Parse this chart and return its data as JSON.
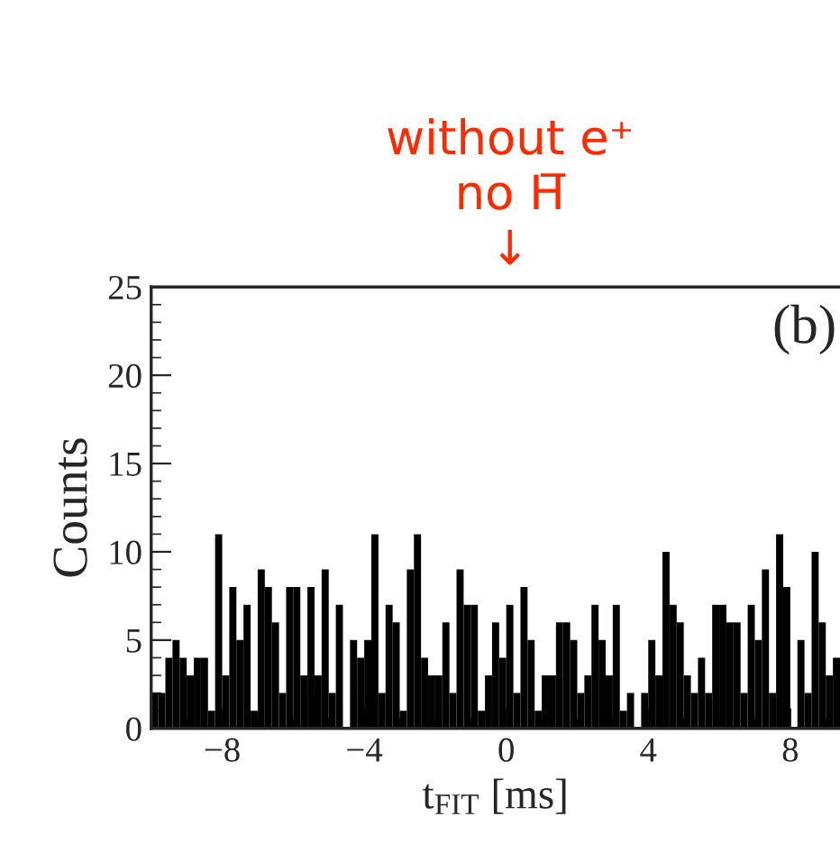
{
  "chart_data": {
    "type": "histogram",
    "xlabel": "t$_{FIT}$ [ms]",
    "ylabel": "Counts",
    "annotations": [
      "without e⁺\nno H̅\n↓",
      "(b)"
    ],
    "bins": [
      -10.0,
      -9.8,
      -9.6,
      -9.4,
      -9.2,
      -9.0,
      -8.8,
      -8.6,
      -8.4,
      -8.2,
      -8.0,
      -7.8,
      -7.6,
      -7.4,
      -7.2,
      -7.0,
      -6.8,
      -6.6,
      -6.4,
      -6.2,
      -6.0,
      -5.8,
      -5.6,
      -5.4,
      -5.2,
      -5.0,
      -4.8,
      -4.6,
      -4.4,
      -4.2,
      -4.0,
      -3.8,
      -3.6,
      -3.4,
      -3.2,
      -3.0,
      -2.8,
      -2.6,
      -2.4,
      -2.2,
      -2.0,
      -1.8,
      -1.6,
      -1.4,
      -1.2,
      -1.0,
      -0.8,
      -0.6,
      -0.4,
      -0.2,
      0.0,
      0.2,
      0.4,
      0.6,
      0.8,
      1.0,
      1.2,
      1.4,
      1.6,
      1.8,
      2.0,
      2.2,
      2.4,
      2.6,
      2.8,
      3.0,
      3.2,
      3.4,
      3.6,
      3.8,
      4.0,
      4.2,
      4.4,
      4.6,
      4.8,
      5.0,
      5.2,
      5.4,
      5.6,
      5.8,
      6.0,
      6.2,
      6.4,
      6.6,
      6.8,
      7.0,
      7.2,
      7.4,
      7.6,
      7.8,
      8.0,
      8.2,
      8.4,
      8.6,
      8.8,
      9.0,
      9.2,
      9.4
    ],
    "values": [
      2,
      2,
      4,
      5,
      4,
      3,
      4,
      4,
      1,
      11,
      3,
      8,
      5,
      7,
      1,
      9,
      8,
      6,
      2,
      8,
      8,
      3,
      8,
      3,
      9,
      2,
      7,
      0,
      5,
      4,
      5,
      11,
      2,
      7,
      6,
      1,
      9,
      11,
      4,
      3,
      3,
      6,
      2,
      9,
      7,
      7,
      1,
      3,
      6,
      4,
      7,
      2,
      8,
      5,
      1,
      3,
      3,
      6,
      6,
      5,
      2,
      3,
      7,
      5,
      3,
      7,
      1,
      2,
      0,
      2,
      5,
      3,
      10,
      7,
      6,
      3,
      2,
      4,
      2,
      7,
      7,
      6,
      6,
      2,
      7,
      5,
      9,
      2,
      11,
      8,
      0,
      5,
      2,
      10,
      6,
      3,
      4
    ],
    "color": "#000000",
    "xlim": [
      -10,
      9.4
    ],
    "ylim": [
      0,
      25
    ],
    "xticks": [
      {
        "value": -8,
        "label": "−8"
      },
      {
        "value": -4,
        "label": "−4"
      },
      0,
      4,
      8
    ],
    "yticks": [
      0,
      5,
      10,
      15,
      20,
      25
    ],
    "grid": false
  }
}
